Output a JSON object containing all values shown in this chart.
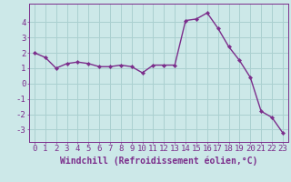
{
  "x": [
    0,
    1,
    2,
    3,
    4,
    5,
    6,
    7,
    8,
    9,
    10,
    11,
    12,
    13,
    14,
    15,
    16,
    17,
    18,
    19,
    20,
    21,
    22,
    23
  ],
  "y": [
    2.0,
    1.7,
    1.0,
    1.3,
    1.4,
    1.3,
    1.1,
    1.1,
    1.2,
    1.1,
    0.7,
    1.2,
    1.2,
    1.2,
    4.1,
    4.2,
    4.6,
    3.6,
    2.4,
    1.5,
    0.4,
    -1.8,
    -2.2,
    -3.2
  ],
  "line_color": "#7b2d8b",
  "marker": "D",
  "marker_size": 2.2,
  "bg_color": "#cce8e8",
  "grid_color": "#aad0d0",
  "xlabel": "Windchill (Refroidissement éolien,°C)",
  "ylabel": "",
  "xlim": [
    -0.5,
    23.5
  ],
  "ylim": [
    -3.8,
    5.2
  ],
  "yticks": [
    -3,
    -2,
    -1,
    0,
    1,
    2,
    3,
    4
  ],
  "xticks": [
    0,
    1,
    2,
    3,
    4,
    5,
    6,
    7,
    8,
    9,
    10,
    11,
    12,
    13,
    14,
    15,
    16,
    17,
    18,
    19,
    20,
    21,
    22,
    23
  ],
  "tick_label_fontsize": 6.5,
  "xlabel_fontsize": 7.0,
  "linewidth": 1.0
}
